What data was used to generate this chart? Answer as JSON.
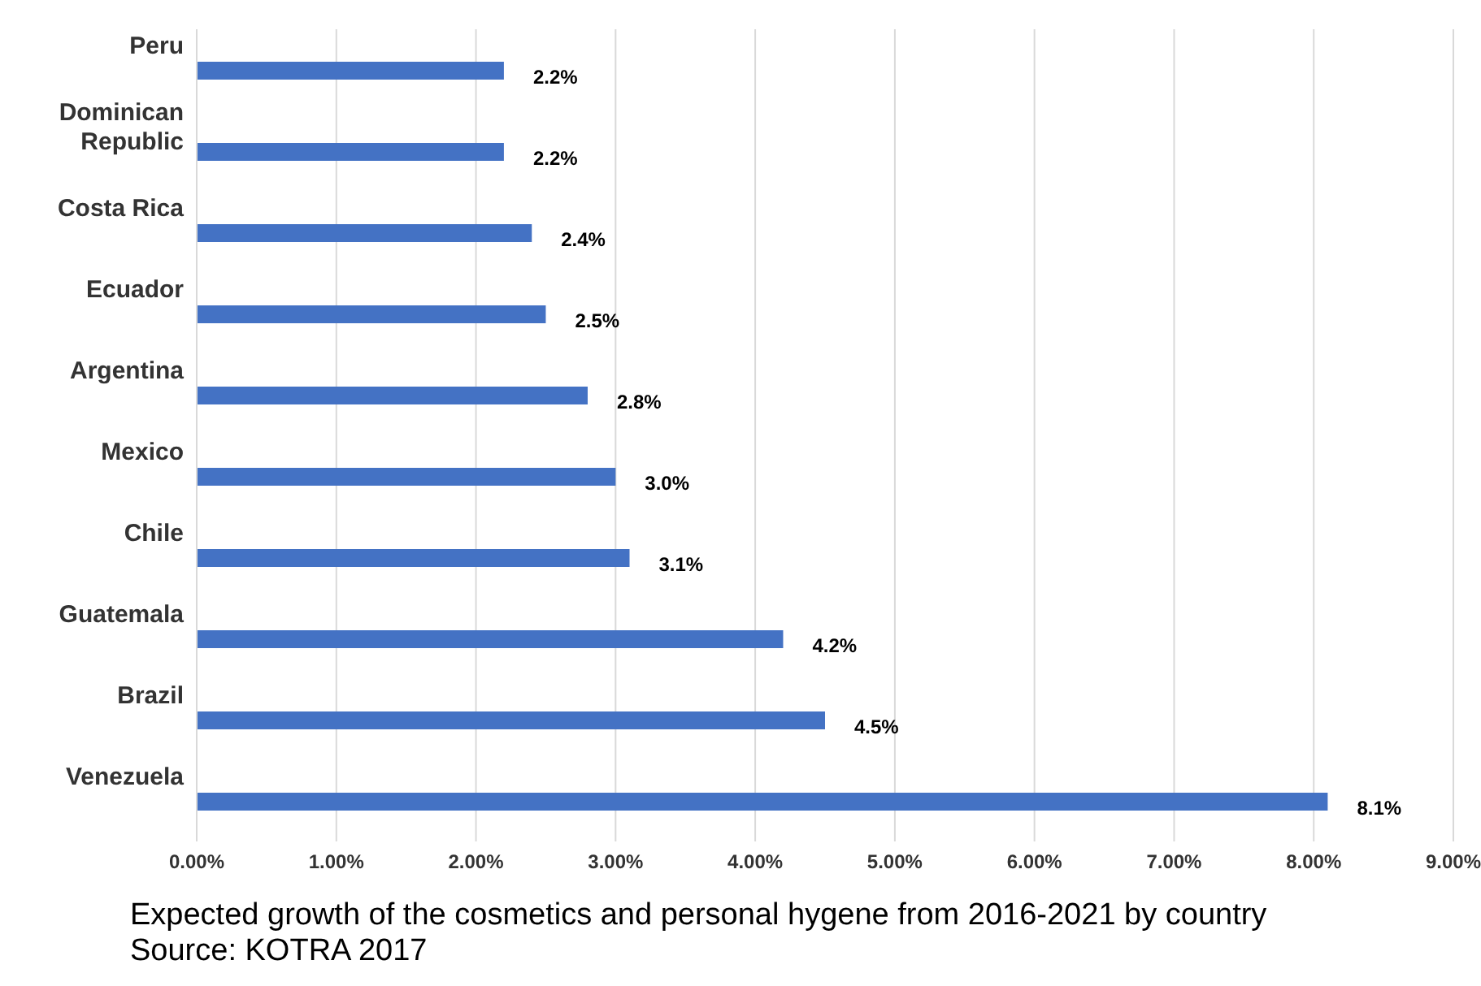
{
  "chart_data": {
    "type": "bar",
    "orientation": "horizontal",
    "categories": [
      "Peru",
      "Dominican Republic",
      "Costa Rica",
      "Ecuador",
      "Argentina",
      "Mexico",
      "Chile",
      "Guatemala",
      "Brazil",
      "Venezuela"
    ],
    "values": [
      2.2,
      2.2,
      2.4,
      2.5,
      2.8,
      3.0,
      3.1,
      4.2,
      4.5,
      8.1
    ],
    "value_labels": [
      "2.2%",
      "2.2%",
      "2.4%",
      "2.5%",
      "2.8%",
      "3.0%",
      "3.1%",
      "4.2%",
      "4.5%",
      "8.1%"
    ],
    "color": "#4472c4",
    "xlim": [
      0,
      9
    ],
    "xticks": [
      {
        "value": 0,
        "label": "0.00%"
      },
      {
        "value": 1,
        "label": "1.00%"
      },
      {
        "value": 2,
        "label": "2.00%"
      },
      {
        "value": 3,
        "label": "3.00%"
      },
      {
        "value": 4,
        "label": "4.00%"
      },
      {
        "value": 5,
        "label": "5.00%"
      },
      {
        "value": 6,
        "label": "6.00%"
      },
      {
        "value": 7,
        "label": "7.00%"
      },
      {
        "value": 8,
        "label": "8.00%"
      },
      {
        "value": 9,
        "label": "9.00%"
      }
    ],
    "grid": "x",
    "annotations": [
      "Expected growth of the cosmetics  and personal hygene from 2016-2021 by country",
      "Source: KOTRA 2017"
    ]
  }
}
